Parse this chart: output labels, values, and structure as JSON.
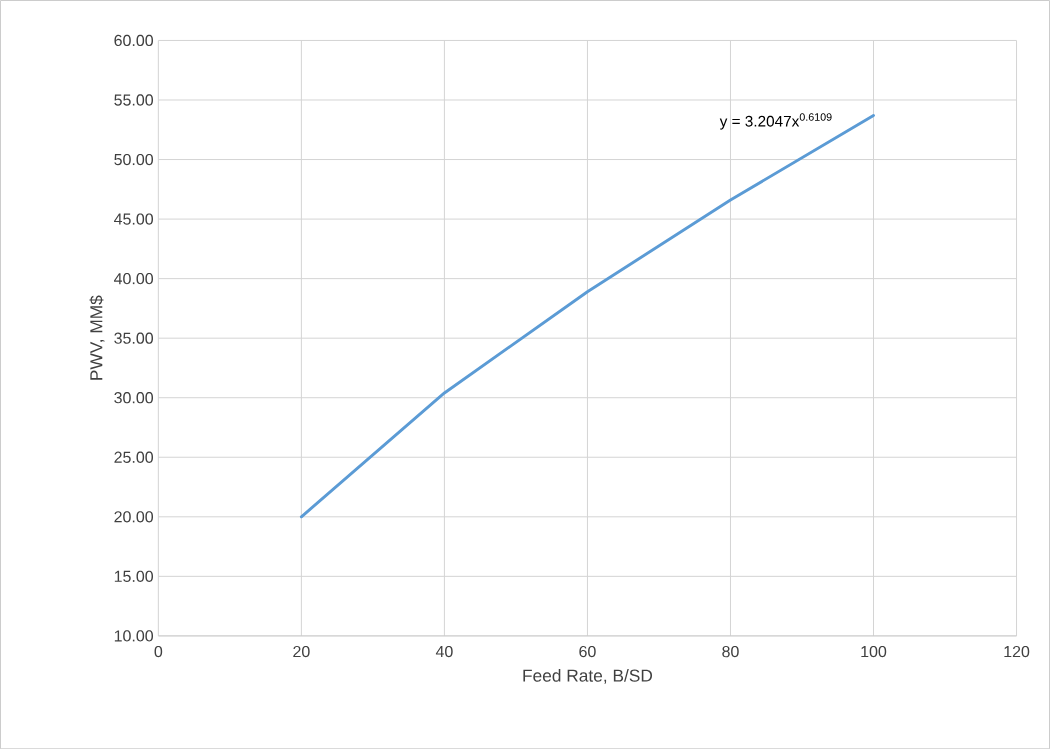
{
  "chart_data": {
    "type": "line",
    "xlabel": "Feed Rate, B/SD",
    "ylabel": "PWV, MM$",
    "x": [
      20,
      40,
      60,
      80,
      100
    ],
    "values": [
      20.0,
      30.4,
      38.9,
      46.6,
      53.7
    ],
    "color": "#5b9bd5",
    "marker": "none",
    "xlim": [
      0,
      120
    ],
    "xticks": [
      0,
      20,
      40,
      60,
      80,
      100,
      120
    ],
    "ylim": [
      10,
      60
    ],
    "yticks": [
      {
        "value": 10,
        "label": "10.00"
      },
      {
        "value": 15,
        "label": "15.00"
      },
      {
        "value": 20,
        "label": "20.00"
      },
      {
        "value": 25,
        "label": "25.00"
      },
      {
        "value": 30,
        "label": "30.00"
      },
      {
        "value": 35,
        "label": "35.00"
      },
      {
        "value": 40,
        "label": "40.00"
      },
      {
        "value": 45,
        "label": "45.00"
      },
      {
        "value": 50,
        "label": "50.00"
      },
      {
        "value": 55,
        "label": "55.00"
      },
      {
        "value": 60,
        "label": "60.00"
      }
    ],
    "grid": true,
    "annotations": [
      "y = 3.2047x$^{0.6109}$"
    ]
  }
}
